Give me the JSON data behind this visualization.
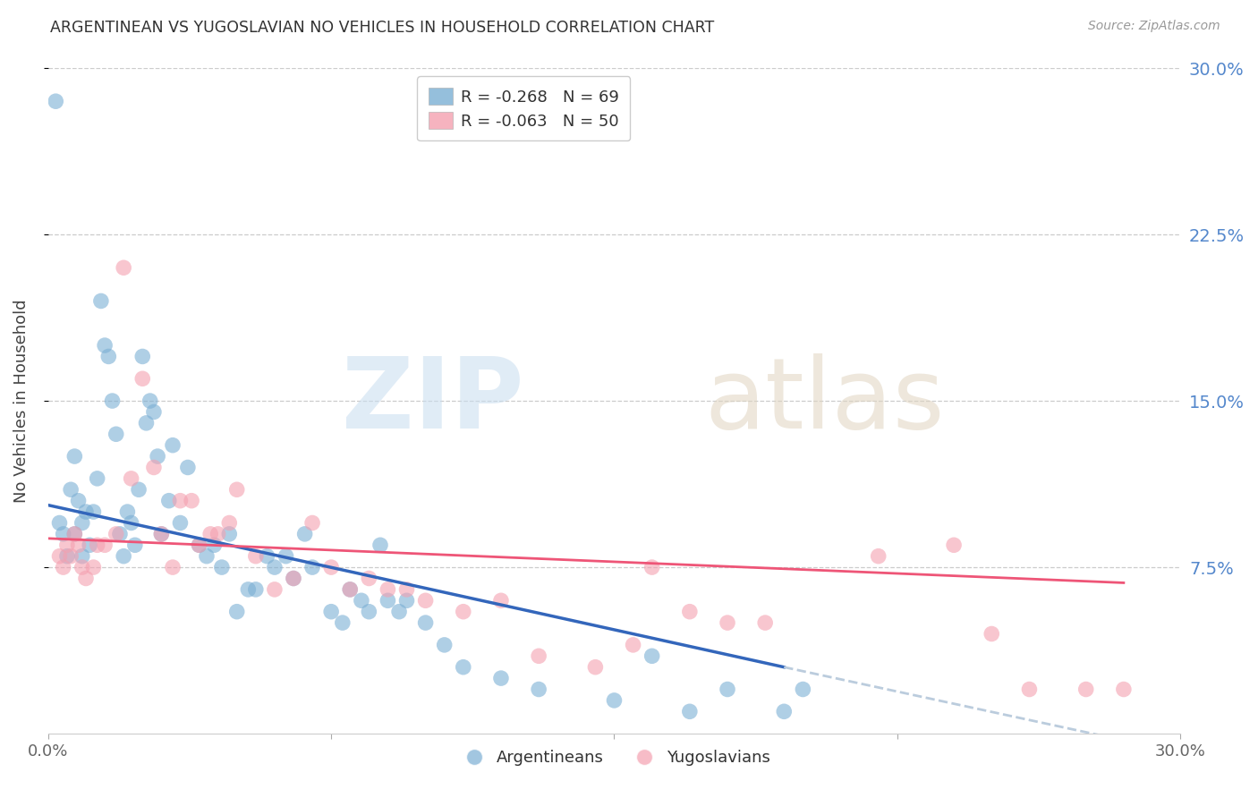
{
  "title": "ARGENTINEAN VS YUGOSLAVIAN NO VEHICLES IN HOUSEHOLD CORRELATION CHART",
  "source": "Source: ZipAtlas.com",
  "ylabel": "No Vehicles in Household",
  "right_ytick_labels": [
    "7.5%",
    "15.0%",
    "22.5%",
    "30.0%"
  ],
  "right_ytick_values": [
    0.075,
    0.15,
    0.225,
    0.3
  ],
  "xlim": [
    0.0,
    0.3
  ],
  "ylim": [
    0.0,
    0.3
  ],
  "argentinean_color": "#7BAFD4",
  "yugoslavian_color": "#F4A0B0",
  "trend_blue": "#3366BB",
  "trend_pink": "#EE5577",
  "trend_dash_color": "#BBCCDD",
  "legend_r_blue": "R = -0.268",
  "legend_n_blue": "N = 69",
  "legend_r_pink": "R = -0.063",
  "legend_n_pink": "N = 50",
  "legend_label_blue": "Argentineans",
  "legend_label_pink": "Yugoslavians",
  "argentinean_x": [
    0.002,
    0.003,
    0.004,
    0.005,
    0.006,
    0.007,
    0.007,
    0.008,
    0.009,
    0.009,
    0.01,
    0.011,
    0.012,
    0.013,
    0.014,
    0.015,
    0.016,
    0.017,
    0.018,
    0.019,
    0.02,
    0.021,
    0.022,
    0.023,
    0.024,
    0.025,
    0.026,
    0.027,
    0.028,
    0.029,
    0.03,
    0.032,
    0.033,
    0.035,
    0.037,
    0.04,
    0.042,
    0.044,
    0.046,
    0.048,
    0.05,
    0.053,
    0.055,
    0.058,
    0.06,
    0.063,
    0.065,
    0.068,
    0.07,
    0.075,
    0.078,
    0.08,
    0.083,
    0.085,
    0.088,
    0.09,
    0.093,
    0.095,
    0.1,
    0.105,
    0.11,
    0.12,
    0.13,
    0.15,
    0.16,
    0.17,
    0.18,
    0.195,
    0.2
  ],
  "argentinean_y": [
    0.285,
    0.095,
    0.09,
    0.08,
    0.11,
    0.125,
    0.09,
    0.105,
    0.095,
    0.08,
    0.1,
    0.085,
    0.1,
    0.115,
    0.195,
    0.175,
    0.17,
    0.15,
    0.135,
    0.09,
    0.08,
    0.1,
    0.095,
    0.085,
    0.11,
    0.17,
    0.14,
    0.15,
    0.145,
    0.125,
    0.09,
    0.105,
    0.13,
    0.095,
    0.12,
    0.085,
    0.08,
    0.085,
    0.075,
    0.09,
    0.055,
    0.065,
    0.065,
    0.08,
    0.075,
    0.08,
    0.07,
    0.09,
    0.075,
    0.055,
    0.05,
    0.065,
    0.06,
    0.055,
    0.085,
    0.06,
    0.055,
    0.06,
    0.05,
    0.04,
    0.03,
    0.025,
    0.02,
    0.015,
    0.035,
    0.01,
    0.02,
    0.01,
    0.02
  ],
  "yugoslavian_x": [
    0.003,
    0.004,
    0.005,
    0.006,
    0.007,
    0.008,
    0.009,
    0.01,
    0.012,
    0.013,
    0.015,
    0.018,
    0.02,
    0.022,
    0.025,
    0.028,
    0.03,
    0.033,
    0.035,
    0.038,
    0.04,
    0.043,
    0.045,
    0.048,
    0.05,
    0.055,
    0.06,
    0.065,
    0.07,
    0.075,
    0.08,
    0.085,
    0.09,
    0.095,
    0.1,
    0.11,
    0.12,
    0.13,
    0.145,
    0.155,
    0.16,
    0.17,
    0.18,
    0.19,
    0.22,
    0.24,
    0.25,
    0.26,
    0.275,
    0.285
  ],
  "yugoslavian_y": [
    0.08,
    0.075,
    0.085,
    0.08,
    0.09,
    0.085,
    0.075,
    0.07,
    0.075,
    0.085,
    0.085,
    0.09,
    0.21,
    0.115,
    0.16,
    0.12,
    0.09,
    0.075,
    0.105,
    0.105,
    0.085,
    0.09,
    0.09,
    0.095,
    0.11,
    0.08,
    0.065,
    0.07,
    0.095,
    0.075,
    0.065,
    0.07,
    0.065,
    0.065,
    0.06,
    0.055,
    0.06,
    0.035,
    0.03,
    0.04,
    0.075,
    0.055,
    0.05,
    0.05,
    0.08,
    0.085,
    0.045,
    0.02,
    0.02,
    0.02
  ],
  "trend_blue_x0": 0.0,
  "trend_blue_x1": 0.195,
  "trend_blue_y0": 0.103,
  "trend_blue_y1": 0.03,
  "trend_dash_x0": 0.195,
  "trend_dash_x1": 0.285,
  "trend_dash_y0": 0.03,
  "trend_dash_y1": -0.003,
  "trend_pink_x0": 0.0,
  "trend_pink_x1": 0.285,
  "trend_pink_y0": 0.088,
  "trend_pink_y1": 0.068
}
